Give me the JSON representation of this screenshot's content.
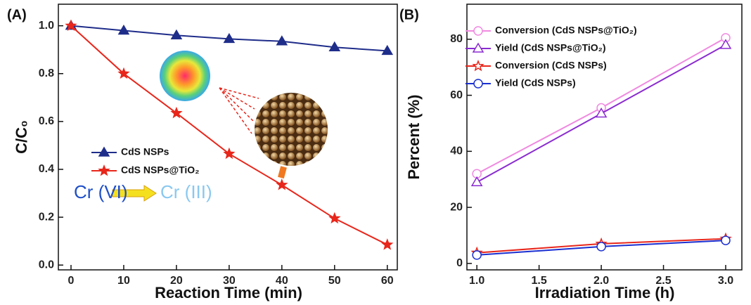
{
  "chart_data": [
    {
      "type": "line",
      "panel_label": "(A)",
      "x_label": "Reaction Time (min)",
      "y_label": "C/C₀",
      "x": [
        0,
        10,
        20,
        30,
        40,
        50,
        60
      ],
      "xlim": [
        -2.4,
        61.9
      ],
      "xticks": [
        0,
        10,
        20,
        30,
        40,
        50,
        60
      ],
      "ylim": [
        -0.02,
        1.09
      ],
      "yticks": [
        {
          "value": 0,
          "label": "0.0"
        },
        {
          "value": 0.2,
          "label": "0.2"
        },
        {
          "value": 0.4,
          "label": "0.4"
        },
        {
          "value": 0.6,
          "label": "0.6"
        },
        {
          "value": 0.8,
          "label": "0.8"
        },
        {
          "value": 1.0,
          "label": "1.0"
        }
      ],
      "series": [
        {
          "name": "CdS NSPs",
          "color": "#1f2d8a",
          "marker": "triangle",
          "filled": true,
          "values": [
            1.0,
            0.98,
            0.96,
            0.945,
            0.935,
            0.91,
            0.895
          ]
        },
        {
          "name": "CdS NSPs@TiO₂",
          "color": "#e8261b",
          "marker": "star",
          "filled": true,
          "values": [
            1.0,
            0.8,
            0.635,
            0.465,
            0.335,
            0.195,
            0.085
          ]
        }
      ],
      "annotations": [
        "Cr (VI)",
        "Cr (III)"
      ]
    },
    {
      "type": "line",
      "panel_label": "(B)",
      "x_label": "Irradiation Time (h)",
      "y_label": "Percent (%)",
      "x": [
        1,
        2,
        3
      ],
      "xlim": [
        0.92,
        3.13
      ],
      "xticks": [
        {
          "value": 1,
          "label": "1.0"
        },
        {
          "value": 1.5,
          "label": "1.5"
        },
        {
          "value": 2,
          "label": "2.0"
        },
        {
          "value": 2.5,
          "label": "2.5"
        },
        {
          "value": 3,
          "label": "3.0"
        }
      ],
      "ylim": [
        -2.3,
        92.5
      ],
      "yticks": [
        0,
        20,
        40,
        60,
        80
      ],
      "series": [
        {
          "name": "Conversion (CdS NSPs@TiO₂)",
          "color": "#f08ae0",
          "marker": "circle",
          "filled": false,
          "values": [
            32,
            55.5,
            80.5
          ]
        },
        {
          "name": "Yield (CdS NSPs@TiO₂)",
          "color": "#8a2bd0",
          "marker": "triangle",
          "filled": false,
          "values": [
            29,
            53.5,
            78
          ]
        },
        {
          "name": "Conversion (CdS NSPs)",
          "color": "#e8261b",
          "marker": "star",
          "filled": false,
          "values": [
            3.8,
            7,
            8.8
          ]
        },
        {
          "name": "Yield (CdS NSPs)",
          "color": "#1a2fd0",
          "marker": "circle",
          "filled": false,
          "values": [
            3,
            6,
            8.2
          ]
        }
      ]
    }
  ]
}
